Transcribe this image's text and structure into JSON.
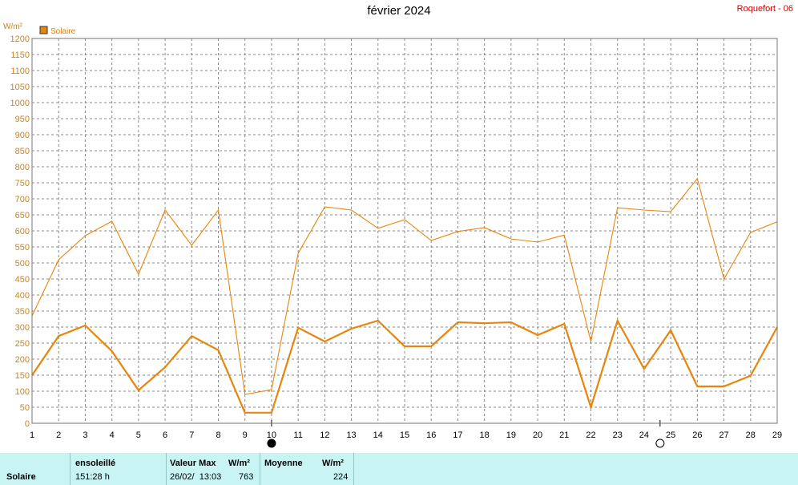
{
  "header": {
    "title": "février 2024",
    "station": "Roquefort - 06"
  },
  "colors": {
    "series": "#e8850c",
    "grid": "#888888",
    "axis_text": "#e08000",
    "footer_bg": "#c8f4f4"
  },
  "chart_data": {
    "type": "line",
    "title": "février 2024",
    "ylabel": "W/m²",
    "xlabel": "",
    "ylim": [
      0,
      1200
    ],
    "ytick_step": 50,
    "x": [
      1,
      2,
      3,
      4,
      5,
      6,
      7,
      8,
      9,
      10,
      11,
      12,
      13,
      14,
      15,
      16,
      17,
      18,
      19,
      20,
      21,
      22,
      23,
      24,
      25,
      26,
      27,
      28,
      29
    ],
    "legend": {
      "label": "Solaire",
      "placement": "top-left"
    },
    "series": [
      {
        "name": "",
        "role": "max",
        "values": [
          335,
          510,
          585,
          630,
          465,
          665,
          555,
          665,
          90,
          105,
          530,
          675,
          665,
          608,
          635,
          570,
          598,
          610,
          575,
          565,
          587,
          255,
          672,
          665,
          660,
          763,
          450,
          595,
          628
        ]
      },
      {
        "name": "",
        "role": "mean",
        "values": [
          150,
          272,
          305,
          225,
          103,
          175,
          272,
          228,
          33,
          33,
          298,
          255,
          295,
          320,
          240,
          240,
          315,
          312,
          315,
          275,
          310,
          50,
          320,
          170,
          290,
          115,
          115,
          148,
          300
        ]
      }
    ],
    "moon_phases": [
      {
        "day": 10,
        "phase": "new-moon"
      },
      {
        "day": 24.6,
        "phase": "full-moon"
      }
    ]
  },
  "footer": {
    "row_label": "Solaire",
    "sunshine": {
      "header": "ensoleillé",
      "value": "151:28 h"
    },
    "max": {
      "header": "Valeur Max",
      "unit": "W/m²",
      "date": "26/02/  13:03",
      "value": "763"
    },
    "mean": {
      "header": "Moyenne",
      "unit": "W/m²",
      "value": "224"
    }
  }
}
